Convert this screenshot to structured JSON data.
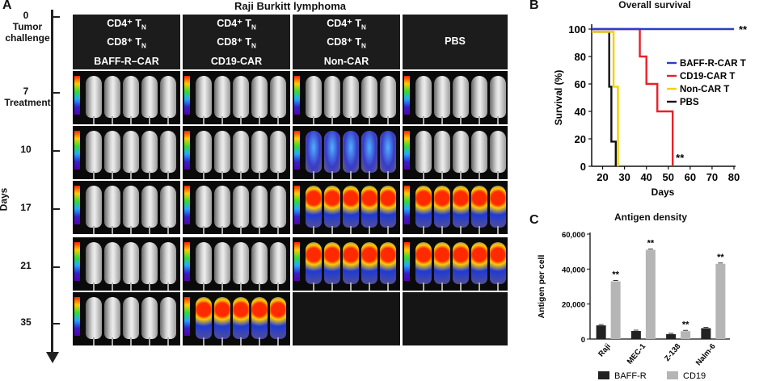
{
  "panel_a": {
    "letter": "A",
    "title": "Raji Burkitt lymphoma",
    "axis_label": "Days",
    "days": [
      {
        "value": "0",
        "note": "Tumor challenge"
      },
      {
        "value": "7",
        "note": "Treatment"
      },
      {
        "value": "10",
        "note": ""
      },
      {
        "value": "17",
        "note": ""
      },
      {
        "value": "21",
        "note": ""
      },
      {
        "value": "35",
        "note": ""
      }
    ],
    "groups": [
      {
        "line1": "CD4⁺ T",
        "sub1": "N",
        "line2": "CD8⁺ T",
        "sub2": "N",
        "line3": "BAFF-R–CAR"
      },
      {
        "line1": "CD4⁺ T",
        "sub1": "N",
        "line2": "CD8⁺ T",
        "sub2": "N",
        "line3": "CD19-CAR"
      },
      {
        "line1": "CD4⁺ T",
        "sub1": "N",
        "line2": "CD8⁺ T",
        "sub2": "N",
        "line3": "Non-CAR"
      },
      {
        "line1": "PBS",
        "sub1": "",
        "line2": "",
        "sub2": "",
        "line3": ""
      }
    ]
  },
  "panel_b": {
    "letter": "B",
    "title": "Overall survival"
  },
  "panel_c": {
    "letter": "C",
    "title": "Antigen density"
  },
  "chart_data": [
    {
      "type": "line",
      "title": "Overall survival",
      "xlabel": "Days",
      "ylabel": "Survival (%)",
      "xlim": [
        15,
        80
      ],
      "ylim": [
        0,
        100
      ],
      "xticks": [
        20,
        30,
        40,
        50,
        60,
        70,
        80
      ],
      "yticks": [
        0,
        20,
        40,
        60,
        80,
        100
      ],
      "step": true,
      "series": [
        {
          "name": "BAFF-R-CAR T",
          "color": "#2a3ec8",
          "x": [
            15,
            80
          ],
          "y": [
            100,
            100
          ],
          "annotation": "**"
        },
        {
          "name": "CD19-CAR T",
          "color": "#e8202a",
          "x": [
            15,
            37,
            40,
            45,
            52
          ],
          "y": [
            100,
            80,
            60,
            40,
            0
          ],
          "annotation": "**"
        },
        {
          "name": "Non-CAR T",
          "color": "#f2d200",
          "x": [
            15,
            25,
            27
          ],
          "y": [
            98,
            58,
            0
          ],
          "annotation": ""
        },
        {
          "name": "PBS",
          "color": "#111111",
          "x": [
            15,
            23,
            24,
            26
          ],
          "y": [
            98,
            58,
            18,
            0
          ],
          "annotation": ""
        }
      ]
    },
    {
      "type": "bar",
      "title": "Antigen density",
      "xlabel": "",
      "ylabel": "Antigen per cell",
      "ylim": [
        0,
        60000
      ],
      "yticks": [
        "0",
        "20,000",
        "40,000",
        "60,000"
      ],
      "categories": [
        "Raji",
        "MEC-1",
        "Z-138",
        "Nalm-6"
      ],
      "series": [
        {
          "name": "BAFF-R",
          "color": "#222222",
          "values": [
            7800,
            4600,
            2800,
            6200
          ]
        },
        {
          "name": "CD19",
          "color": "#b5b5b5",
          "values": [
            33000,
            51000,
            4500,
            43000
          ]
        }
      ],
      "significance": [
        "**",
        "**",
        "**",
        "**"
      ]
    }
  ]
}
